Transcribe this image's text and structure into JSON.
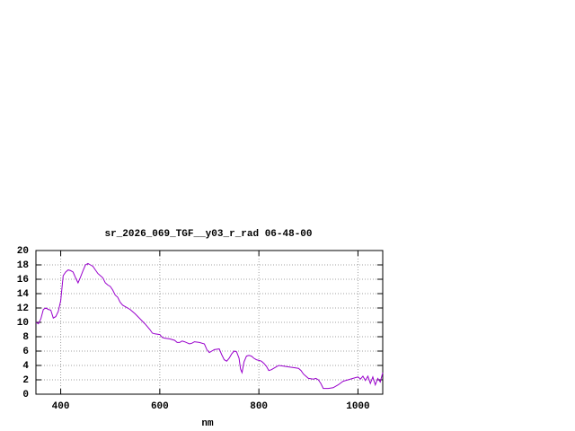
{
  "chart_data": {
    "type": "line",
    "title": "sr_2026_069_TGF__y03_r_rad 06-48-00",
    "x_label": "nm",
    "color": "#9900cc",
    "grid": true,
    "xlim": [
      350,
      1050
    ],
    "xticks": [
      400,
      600,
      800,
      1000
    ],
    "ylim": [
      0,
      20
    ],
    "yticks": [
      0,
      2,
      4,
      6,
      8,
      10,
      12,
      14,
      16,
      18,
      20
    ],
    "x": [
      350,
      355,
      360,
      365,
      370,
      375,
      380,
      385,
      390,
      395,
      400,
      405,
      410,
      415,
      420,
      425,
      430,
      435,
      440,
      445,
      450,
      455,
      460,
      465,
      470,
      475,
      480,
      485,
      490,
      495,
      500,
      505,
      510,
      515,
      520,
      525,
      530,
      540,
      550,
      560,
      570,
      580,
      585,
      590,
      600,
      605,
      610,
      620,
      630,
      635,
      640,
      645,
      650,
      660,
      665,
      670,
      680,
      690,
      695,
      700,
      705,
      710,
      720,
      725,
      730,
      735,
      740,
      745,
      750,
      755,
      760,
      763,
      766,
      770,
      775,
      780,
      785,
      790,
      795,
      800,
      805,
      810,
      815,
      820,
      825,
      830,
      835,
      840,
      850,
      860,
      870,
      880,
      885,
      890,
      895,
      900,
      910,
      915,
      920,
      925,
      930,
      940,
      950,
      960,
      970,
      980,
      990,
      1000,
      1005,
      1010,
      1015,
      1020,
      1025,
      1030,
      1035,
      1040,
      1045,
      1050
    ],
    "values": [
      10,
      9.8,
      10.5,
      11.8,
      12,
      11.8,
      11.7,
      10.6,
      10.8,
      11.5,
      13,
      16.5,
      17,
      17.3,
      17.2,
      17,
      16.2,
      15.5,
      16.3,
      17.2,
      18,
      18.2,
      18,
      17.8,
      17.3,
      16.8,
      16.5,
      16.2,
      15.5,
      15.2,
      15,
      14.5,
      13.8,
      13.5,
      12.8,
      12.4,
      12.2,
      11.8,
      11.2,
      10.5,
      9.8,
      9,
      8.5,
      8.4,
      8.3,
      7.9,
      7.8,
      7.7,
      7.5,
      7.2,
      7.2,
      7.4,
      7.3,
      7,
      7.1,
      7.3,
      7.2,
      7,
      6.2,
      5.8,
      6,
      6.2,
      6.3,
      5.5,
      4.8,
      4.6,
      5,
      5.6,
      6,
      5.9,
      5,
      3.5,
      3,
      4.5,
      5.3,
      5.4,
      5.3,
      5,
      4.8,
      4.7,
      4.6,
      4.3,
      3.9,
      3.3,
      3.4,
      3.6,
      3.8,
      4,
      3.9,
      3.8,
      3.7,
      3.6,
      3.3,
      2.8,
      2.5,
      2.2,
      2.1,
      2.2,
      2,
      1.5,
      0.8,
      0.8,
      0.9,
      1.3,
      1.8,
      2,
      2.2,
      2.4,
      2.1,
      2.5,
      1.9,
      2.5,
      1.5,
      2.4,
      1.3,
      2.2,
      1.7,
      3
    ]
  }
}
